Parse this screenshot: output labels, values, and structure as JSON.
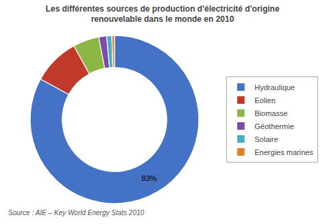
{
  "chart_data": {
    "type": "pie",
    "title": "Les différentes sources de production d'électricité d'origine\nrenouvelable dans le monde en 2010",
    "categories": [
      "Hydraulique",
      "Eolien",
      "Biomasse",
      "Géothermie",
      "Solaire",
      "Energies marines"
    ],
    "values": [
      83,
      9,
      5,
      1.5,
      1.0,
      0.5
    ],
    "value_labels": [
      "83%",
      null,
      null,
      null,
      null,
      null
    ],
    "colors": [
      "#4472C4",
      "#C0392B",
      "#8DB645",
      "#7B4EA6",
      "#4BACC6",
      "#E67E22"
    ],
    "annotations": [
      "Source : AIE – Key World Energy Stats 2010"
    ],
    "legend": "right"
  }
}
